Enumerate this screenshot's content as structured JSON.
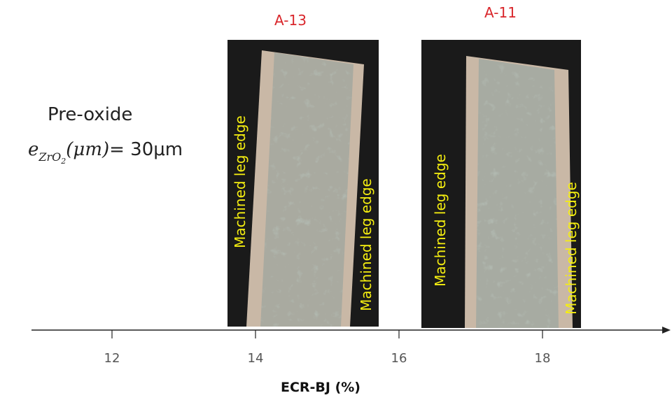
{
  "pre_oxide": "Pre-oxide",
  "thickness": {
    "symbol": "e",
    "subscript": "ZrO",
    "sub_subscript": "2",
    "unit_math": "(μm)",
    "value": "= 30μm"
  },
  "axis": {
    "label": "ECR-BJ (%)",
    "ticks": [
      12,
      14,
      16,
      18
    ]
  },
  "samples": [
    {
      "label": "A-13",
      "left_edge": "Machined leg edge",
      "right_edge": "Machined leg edge"
    },
    {
      "label": "A-11",
      "left_edge": "Machined leg edge",
      "right_edge": "Machined leg edge"
    }
  ]
}
